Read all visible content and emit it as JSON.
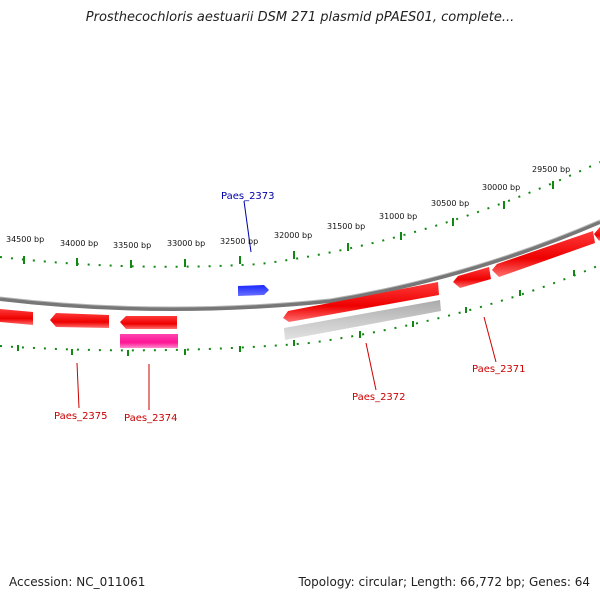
{
  "title": "Prosthecochloris aestuarii DSM 271 plasmid pPAES01, complete...",
  "footer": {
    "accession": "Accession: NC_011061",
    "info": "Topology: circular; Length: 66,772 bp; Genes: 64"
  },
  "ticks": [
    "34500 bp",
    "34000 bp",
    "33500 bp",
    "33000 bp",
    "32500 bp",
    "32000 bp",
    "31500 bp",
    "31000 bp",
    "30500 bp",
    "30000 bp",
    "29500 bp"
  ],
  "genes": [
    {
      "name": "Paes_2371",
      "color": "#cc0000"
    },
    {
      "name": "Paes_2372",
      "color": "#cc0000"
    },
    {
      "name": "Paes_2373",
      "color": "#0000aa"
    },
    {
      "name": "Paes_2374",
      "color": "#cc0000"
    },
    {
      "name": "Paes_2375",
      "color": "#cc0000"
    }
  ],
  "colors": {
    "backbone": "#888888",
    "ticks": "#118811",
    "gene_red": "#ff1a1a",
    "gene_pink": "#ff2aa0",
    "gene_blue": "#0a14ff",
    "gene_gray": "#b8b8b8"
  }
}
